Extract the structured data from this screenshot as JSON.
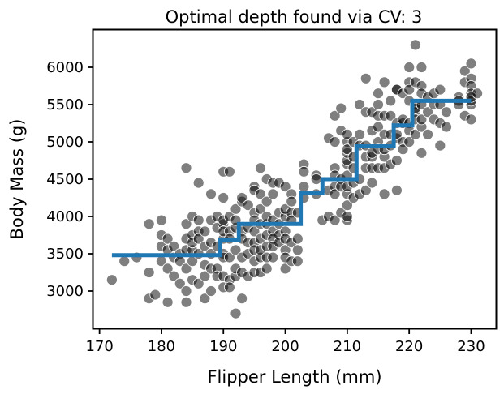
{
  "chart_data": {
    "type": "scatter",
    "title": "Optimal depth found via CV: 3",
    "xlabel": "Flipper Length (mm)",
    "ylabel": "Body Mass (g)",
    "xlim": [
      169,
      234
    ],
    "ylim": [
      2500,
      6500
    ],
    "x_ticks": [
      170,
      180,
      190,
      200,
      210,
      220,
      230
    ],
    "y_ticks": [
      3000,
      3500,
      4000,
      4500,
      5000,
      5500,
      6000
    ],
    "grid": false,
    "legend": "none",
    "colors": {
      "points": "#000000",
      "step_line": "#1f77b4"
    },
    "series": [
      {
        "type": "scatter",
        "points": [
          [
            172,
            3150
          ],
          [
            174,
            3400
          ],
          [
            176,
            3450
          ],
          [
            178,
            3900
          ],
          [
            178,
            3250
          ],
          [
            178,
            2900
          ],
          [
            179,
            2950
          ],
          [
            180,
            3950
          ],
          [
            180,
            3750
          ],
          [
            180,
            3600
          ],
          [
            180,
            3400
          ],
          [
            181,
            3700
          ],
          [
            181,
            3300
          ],
          [
            181,
            3550
          ],
          [
            181,
            2850
          ],
          [
            182,
            3200
          ],
          [
            182,
            3600
          ],
          [
            182,
            3450
          ],
          [
            183,
            3500
          ],
          [
            183,
            3100
          ],
          [
            183,
            3400
          ],
          [
            184,
            4650
          ],
          [
            184,
            3900
          ],
          [
            184,
            3700
          ],
          [
            184,
            3550
          ],
          [
            184,
            3000
          ],
          [
            184,
            2850
          ],
          [
            184,
            3300
          ],
          [
            185,
            4000
          ],
          [
            185,
            3750
          ],
          [
            185,
            3150
          ],
          [
            185,
            3550
          ],
          [
            185,
            3400
          ],
          [
            185,
            3650
          ],
          [
            186,
            3500
          ],
          [
            186,
            3100
          ],
          [
            186,
            3800
          ],
          [
            186,
            4450
          ],
          [
            186,
            3700
          ],
          [
            186,
            3950
          ],
          [
            187,
            3350
          ],
          [
            187,
            3600
          ],
          [
            187,
            2900
          ],
          [
            187,
            3800
          ],
          [
            187,
            3200
          ],
          [
            188,
            3950
          ],
          [
            188,
            3000
          ],
          [
            188,
            3500
          ],
          [
            188,
            3300
          ],
          [
            188,
            4300
          ],
          [
            188,
            3650
          ],
          [
            189,
            3600
          ],
          [
            189,
            3850
          ],
          [
            189,
            3300
          ],
          [
            189,
            3200
          ],
          [
            189,
            4000
          ],
          [
            190,
            4250
          ],
          [
            190,
            4600
          ],
          [
            190,
            3900
          ],
          [
            190,
            3700
          ],
          [
            190,
            3500
          ],
          [
            190,
            3450
          ],
          [
            190,
            3200
          ],
          [
            190,
            3050
          ],
          [
            190,
            3950
          ],
          [
            190,
            3800
          ],
          [
            191,
            4600
          ],
          [
            191,
            3800
          ],
          [
            191,
            3450
          ],
          [
            191,
            3150
          ],
          [
            191,
            3050
          ],
          [
            191,
            4000
          ],
          [
            191,
            3700
          ],
          [
            192,
            3550
          ],
          [
            192,
            3200
          ],
          [
            192,
            3850
          ],
          [
            192,
            3950
          ],
          [
            192,
            2700
          ],
          [
            192,
            3300
          ],
          [
            192,
            4100
          ],
          [
            193,
            4200
          ],
          [
            193,
            3800
          ],
          [
            193,
            3450
          ],
          [
            193,
            3700
          ],
          [
            193,
            3250
          ],
          [
            193,
            2900
          ],
          [
            193,
            4250
          ],
          [
            194,
            4150
          ],
          [
            194,
            3650
          ],
          [
            194,
            3500
          ],
          [
            194,
            3200
          ],
          [
            194,
            3850
          ],
          [
            195,
            4400
          ],
          [
            195,
            4050
          ],
          [
            195,
            3950
          ],
          [
            195,
            3650
          ],
          [
            195,
            3400
          ],
          [
            195,
            3250
          ],
          [
            195,
            4350
          ],
          [
            195,
            3550
          ],
          [
            195,
            3800
          ],
          [
            196,
            4650
          ],
          [
            196,
            4300
          ],
          [
            196,
            4100
          ],
          [
            196,
            3700
          ],
          [
            196,
            3450
          ],
          [
            196,
            3900
          ],
          [
            196,
            3550
          ],
          [
            196,
            3250
          ],
          [
            197,
            4500
          ],
          [
            197,
            4200
          ],
          [
            197,
            3900
          ],
          [
            197,
            3600
          ],
          [
            197,
            3300
          ],
          [
            197,
            4000
          ],
          [
            197,
            3450
          ],
          [
            197,
            3750
          ],
          [
            198,
            4300
          ],
          [
            198,
            4450
          ],
          [
            198,
            3950
          ],
          [
            198,
            3800
          ],
          [
            198,
            3700
          ],
          [
            198,
            3450
          ],
          [
            198,
            3600
          ],
          [
            199,
            4050
          ],
          [
            199,
            3900
          ],
          [
            199,
            4450
          ],
          [
            199,
            3750
          ],
          [
            199,
            3650
          ],
          [
            200,
            4400
          ],
          [
            200,
            4000
          ],
          [
            200,
            3800
          ],
          [
            200,
            3700
          ],
          [
            200,
            3550
          ],
          [
            200,
            3300
          ],
          [
            200,
            3450
          ],
          [
            200,
            4100
          ],
          [
            201,
            4300
          ],
          [
            201,
            4050
          ],
          [
            201,
            3400
          ],
          [
            201,
            3650
          ],
          [
            201,
            3950
          ],
          [
            201,
            4200
          ],
          [
            202,
            3700
          ],
          [
            202,
            3400
          ],
          [
            202,
            4050
          ],
          [
            202,
            3550
          ],
          [
            203,
            4250
          ],
          [
            203,
            4400
          ],
          [
            203,
            4700
          ],
          [
            203,
            4600
          ],
          [
            205,
            4550
          ],
          [
            205,
            4300
          ],
          [
            205,
            4500
          ],
          [
            206,
            3950
          ],
          [
            207,
            5050
          ],
          [
            207,
            4000
          ],
          [
            207,
            4350
          ],
          [
            208,
            4650
          ],
          [
            208,
            4400
          ],
          [
            208,
            4550
          ],
          [
            208,
            4300
          ],
          [
            208,
            5000
          ],
          [
            208,
            5350
          ],
          [
            208,
            3950
          ],
          [
            209,
            5450
          ],
          [
            209,
            5150
          ],
          [
            209,
            4050
          ],
          [
            209,
            4500
          ],
          [
            209,
            4400
          ],
          [
            210,
            4700
          ],
          [
            210,
            5000
          ],
          [
            210,
            4550
          ],
          [
            210,
            4300
          ],
          [
            210,
            4150
          ],
          [
            210,
            4400
          ],
          [
            210,
            4750
          ],
          [
            210,
            3950
          ],
          [
            210,
            4000
          ],
          [
            210,
            4850
          ],
          [
            210,
            4900
          ],
          [
            210,
            5100
          ],
          [
            211,
            4250
          ],
          [
            211,
            4450
          ],
          [
            211,
            4650
          ],
          [
            211,
            4800
          ],
          [
            211,
            5000
          ],
          [
            212,
            4300
          ],
          [
            212,
            4500
          ],
          [
            212,
            4950
          ],
          [
            212,
            5100
          ],
          [
            212,
            5500
          ],
          [
            213,
            4350
          ],
          [
            213,
            4650
          ],
          [
            213,
            4800
          ],
          [
            213,
            5850
          ],
          [
            213,
            4950
          ],
          [
            213,
            5400
          ],
          [
            214,
            4650
          ],
          [
            214,
            4450
          ],
          [
            214,
            4800
          ],
          [
            214,
            4850
          ],
          [
            214,
            5150
          ],
          [
            214,
            5400
          ],
          [
            215,
            4650
          ],
          [
            215,
            5000
          ],
          [
            215,
            5350
          ],
          [
            215,
            5500
          ],
          [
            215,
            5650
          ],
          [
            215,
            4900
          ],
          [
            215,
            5200
          ],
          [
            216,
            4800
          ],
          [
            216,
            4650
          ],
          [
            216,
            4900
          ],
          [
            216,
            5100
          ],
          [
            216,
            5800
          ],
          [
            216,
            5350
          ],
          [
            216,
            4300
          ],
          [
            217,
            4950
          ],
          [
            217,
            4700
          ],
          [
            217,
            5350
          ],
          [
            217,
            5550
          ],
          [
            217,
            5100
          ],
          [
            218,
            5700
          ],
          [
            218,
            5050
          ],
          [
            218,
            5250
          ],
          [
            218,
            5100
          ],
          [
            218,
            4750
          ],
          [
            218,
            4350
          ],
          [
            218,
            5700
          ],
          [
            219,
            5650
          ],
          [
            219,
            5250
          ],
          [
            219,
            5000
          ],
          [
            219,
            4900
          ],
          [
            219,
            5300
          ],
          [
            220,
            5800
          ],
          [
            220,
            6000
          ],
          [
            220,
            5250
          ],
          [
            220,
            5150
          ],
          [
            220,
            5000
          ],
          [
            220,
            5550
          ],
          [
            220,
            5700
          ],
          [
            221,
            6300
          ],
          [
            221,
            5800
          ],
          [
            221,
            5500
          ],
          [
            221,
            5400
          ],
          [
            221,
            5300
          ],
          [
            221,
            5100
          ],
          [
            221,
            5450
          ],
          [
            222,
            6000
          ],
          [
            222,
            5750
          ],
          [
            222,
            5500
          ],
          [
            222,
            5200
          ],
          [
            222,
            4850
          ],
          [
            222,
            5300
          ],
          [
            222,
            5650
          ],
          [
            223,
            5600
          ],
          [
            223,
            5400
          ],
          [
            223,
            5100
          ],
          [
            224,
            5650
          ],
          [
            224,
            5500
          ],
          [
            224,
            5300
          ],
          [
            225,
            5700
          ],
          [
            225,
            5250
          ],
          [
            225,
            4950
          ],
          [
            225,
            5500
          ],
          [
            226,
            5200
          ],
          [
            226,
            5400
          ],
          [
            228,
            5600
          ],
          [
            228,
            5550
          ],
          [
            228,
            5500
          ],
          [
            229,
            5950
          ],
          [
            229,
            5800
          ],
          [
            229,
            5350
          ],
          [
            230,
            6050
          ],
          [
            230,
            5850
          ],
          [
            230,
            5750
          ],
          [
            230,
            5650
          ],
          [
            230,
            5500
          ],
          [
            230,
            5550
          ],
          [
            230,
            5600
          ],
          [
            230,
            5300
          ],
          [
            231,
            5650
          ]
        ]
      },
      {
        "type": "step",
        "points": [
          [
            172,
            3480
          ],
          [
            189.5,
            3480
          ],
          [
            189.5,
            3680
          ],
          [
            192.5,
            3680
          ],
          [
            192.5,
            3900
          ],
          [
            202.5,
            3900
          ],
          [
            202.5,
            4320
          ],
          [
            206,
            4320
          ],
          [
            206,
            4500
          ],
          [
            211.5,
            4500
          ],
          [
            211.5,
            4940
          ],
          [
            217.5,
            4940
          ],
          [
            217.5,
            5220
          ],
          [
            220.5,
            5220
          ],
          [
            220.5,
            5550
          ],
          [
            230,
            5550
          ]
        ]
      }
    ]
  }
}
